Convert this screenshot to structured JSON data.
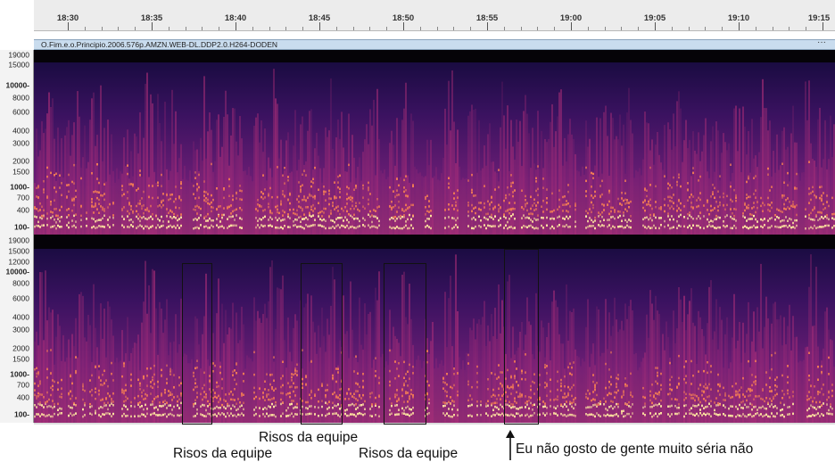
{
  "timeline": {
    "ticks": [
      "18:30",
      "18:35",
      "18:40",
      "18:45",
      "18:50",
      "18:55",
      "19:00",
      "19:05",
      "19:10",
      "19:15"
    ]
  },
  "track": {
    "title": "O.Fim.e.o.Principio.2006.576p.AMZN.WEB-DL.DDP2.0.H264-DODEN",
    "menu": "···"
  },
  "channel_top": {
    "freq_labels": [
      "19000",
      "15000",
      "10000-",
      "8000",
      "6000",
      "4000",
      "3000",
      "2000",
      "1500",
      "1000-",
      "700",
      "400",
      "100-"
    ]
  },
  "channel_bottom": {
    "freq_labels": [
      "19000",
      "15000",
      "12000",
      "10000-",
      "8000",
      "6000",
      "4000",
      "3000",
      "2000",
      "1500",
      "1000-",
      "700",
      "400",
      "100-"
    ]
  },
  "annotations": {
    "laugh_1": "Risos da equipe",
    "laugh_2": "Risos da equipe",
    "laugh_3": "Risos da equipe",
    "quote": "Eu não gosto de gente muito séria não"
  },
  "colors": {
    "spectrogram_low": "#1a0f4a",
    "spectrogram_mid": "#b3307a",
    "spectrogram_high": "#ffe6a0",
    "track_header": "#c9dcee",
    "box": "#111111"
  }
}
